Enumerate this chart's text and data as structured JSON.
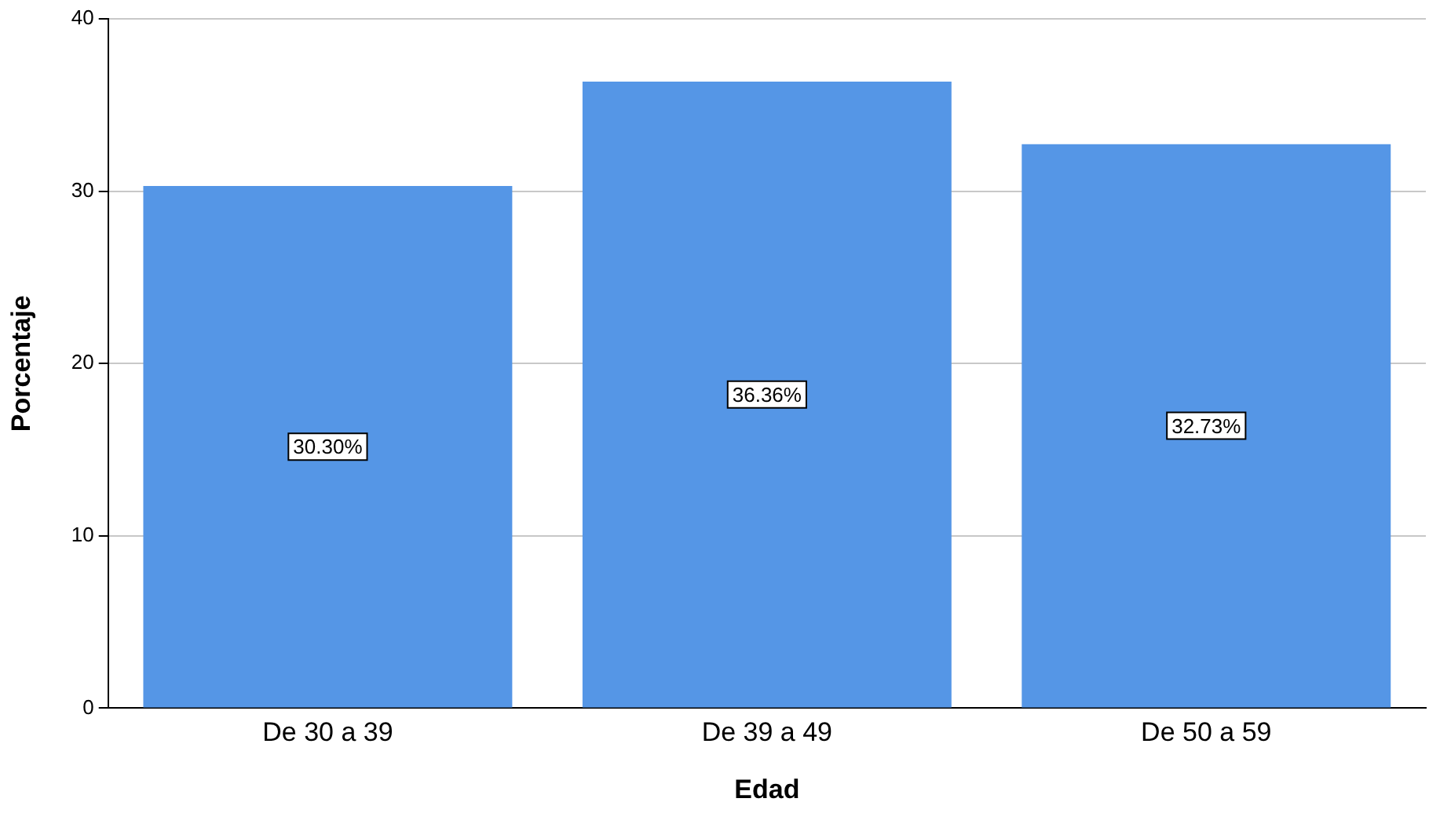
{
  "chart_data": {
    "type": "bar",
    "xlabel": "Edad",
    "ylabel": "Porcentaje",
    "categories": [
      "De 30 a 39",
      "De 39 a 49",
      "De 50 a 59"
    ],
    "values": [
      30.3,
      36.36,
      32.73
    ],
    "color": "#5596e6",
    "value_labels": [
      "30.30%",
      "36.36%",
      "32.73%"
    ],
    "ylim": [
      0,
      40
    ],
    "yticks": [
      0,
      10,
      20,
      30,
      40
    ],
    "grid": "y"
  }
}
